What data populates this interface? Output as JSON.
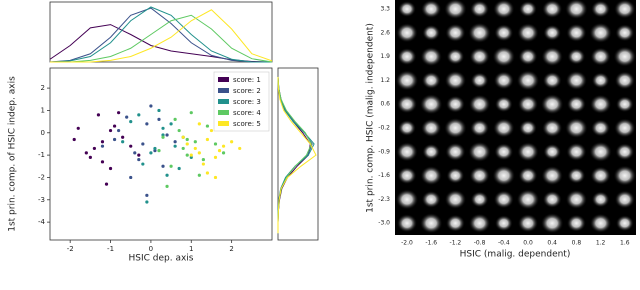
{
  "chart_data": [
    {
      "type": "scatter",
      "xlabel": "HSIC dep. axis",
      "ylabel": "1st prin. comp. of HSIC indep. axis",
      "xlim": [
        -2.5,
        3.0
      ],
      "ylim": [
        -4.8,
        2.9
      ],
      "xticks": [
        -2,
        -1,
        0,
        1,
        2
      ],
      "yticks": [
        -4,
        -3,
        -2,
        -1,
        0,
        1,
        2
      ],
      "legend": "upper right",
      "kde_lim": [
        0,
        1
      ],
      "kde_x_grid": [
        -2.5,
        -2,
        -1.5,
        -1,
        -0.5,
        0,
        0.5,
        1,
        1.5,
        2,
        2.5,
        3.0
      ],
      "kde_y_grid": [
        2.5,
        2,
        1.5,
        1,
        0.5,
        0,
        -0.5,
        -1,
        -1.5,
        -2,
        -2.5,
        -3,
        -3.5,
        -4,
        -4.5
      ],
      "series": [
        {
          "name": "score: 1",
          "color": "#440154",
          "x": [
            -1.8,
            -1.5,
            -1.3,
            -1.2,
            -1.0,
            -0.9,
            -1.4,
            -0.7,
            -1.1,
            -1.6,
            -0.8,
            -1.2,
            -0.5,
            -1.0,
            -1.9,
            -0.3
          ],
          "y": [
            0.2,
            -1.1,
            0.8,
            -0.4,
            -1.6,
            0.3,
            -0.7,
            -0.2,
            -2.3,
            -0.9,
            0.9,
            -1.3,
            -0.6,
            0.1,
            -0.3,
            -1.0
          ],
          "kde_x": [
            0.05,
            0.3,
            0.62,
            0.68,
            0.5,
            0.3,
            0.2,
            0.15,
            0.1,
            0.04,
            0.01,
            0
          ],
          "kde_y": [
            0,
            0.02,
            0.08,
            0.2,
            0.4,
            0.65,
            0.85,
            0.8,
            0.5,
            0.25,
            0.1,
            0.04,
            0.01,
            0,
            0
          ]
        },
        {
          "name": "score: 2",
          "color": "#3b528b",
          "x": [
            -0.9,
            -0.6,
            -0.3,
            -0.1,
            0.1,
            0.4,
            -0.5,
            0.0,
            -0.2,
            0.3,
            -0.8,
            0.2,
            -0.4,
            0.6,
            -0.1,
            -1.2
          ],
          "y": [
            -0.3,
            0.7,
            -1.2,
            0.4,
            -0.8,
            -0.1,
            -2.0,
            1.2,
            -0.5,
            -1.5,
            0.1,
            0.6,
            -0.9,
            -0.4,
            -2.8,
            -0.6
          ],
          "kde_x": [
            0,
            0.03,
            0.15,
            0.45,
            0.85,
            0.98,
            0.7,
            0.35,
            0.12,
            0.03,
            0,
            0
          ],
          "kde_y": [
            0,
            0.02,
            0.07,
            0.2,
            0.42,
            0.7,
            0.9,
            0.78,
            0.45,
            0.2,
            0.08,
            0.03,
            0.01,
            0,
            0
          ]
        },
        {
          "name": "score: 3",
          "color": "#21918c",
          "x": [
            -0.5,
            0.0,
            0.3,
            0.6,
            -0.2,
            0.2,
            0.8,
            -0.7,
            0.4,
            0.1,
            -0.3,
            0.5,
            1.0,
            -0.1,
            0.3,
            0.7
          ],
          "y": [
            0.5,
            -0.9,
            0.2,
            -0.6,
            -1.4,
            1.0,
            -0.2,
            -0.4,
            -1.9,
            -0.7,
            0.8,
            0.4,
            -1.1,
            -3.1,
            -0.1,
            -1.6
          ],
          "kde_x": [
            0,
            0.02,
            0.1,
            0.35,
            0.75,
            1.0,
            0.85,
            0.5,
            0.2,
            0.05,
            0,
            0
          ],
          "kde_y": [
            0,
            0.01,
            0.06,
            0.18,
            0.4,
            0.7,
            0.95,
            0.8,
            0.45,
            0.2,
            0.07,
            0.02,
            0,
            0,
            0
          ]
        },
        {
          "name": "score: 4",
          "color": "#5ec962",
          "x": [
            0.3,
            0.6,
            0.9,
            1.1,
            1.4,
            0.5,
            0.8,
            1.2,
            0.2,
            1.0,
            1.6,
            0.7,
            0.4,
            1.3,
            0.9,
            1.8
          ],
          "y": [
            -0.2,
            0.6,
            -1.0,
            -0.4,
            0.3,
            -1.5,
            -0.7,
            -1.9,
            -0.8,
            0.9,
            -0.5,
            0.1,
            -2.4,
            -1.2,
            -0.3,
            -0.9
          ],
          "kde_x": [
            0,
            0,
            0.03,
            0.1,
            0.25,
            0.5,
            0.75,
            0.85,
            0.6,
            0.25,
            0.06,
            0
          ],
          "kde_y": [
            0,
            0.02,
            0.08,
            0.22,
            0.45,
            0.72,
            0.88,
            0.75,
            0.45,
            0.22,
            0.09,
            0.03,
            0.01,
            0,
            0
          ]
        },
        {
          "name": "score: 5",
          "color": "#fde725",
          "x": [
            0.9,
            1.2,
            1.4,
            1.6,
            1.1,
            1.5,
            1.3,
            1.8,
            0.8,
            1.7,
            1.4,
            2.0,
            1.2,
            1.0,
            1.6,
            2.2
          ],
          "y": [
            -0.5,
            -0.9,
            -0.3,
            -1.1,
            -0.7,
            0.1,
            -1.4,
            -0.6,
            -0.2,
            -0.8,
            -1.8,
            -0.4,
            0.4,
            -1.0,
            -2.0,
            -0.7
          ],
          "kde_x": [
            0,
            0,
            0,
            0.03,
            0.1,
            0.25,
            0.45,
            0.75,
            0.95,
            0.6,
            0.15,
            0.02
          ],
          "kde_y": [
            0,
            0.01,
            0.05,
            0.15,
            0.35,
            0.6,
            0.85,
            1.0,
            0.6,
            0.25,
            0.08,
            0.03,
            0.01,
            0,
            0
          ]
        }
      ]
    },
    {
      "type": "image_grid",
      "xlabel": "HSIC (malig. dependent)",
      "ylabel": "1st prin. comp. HSIC (malig. independent)",
      "categories": [
        "-2.0",
        "-1.6",
        "-1.2",
        "-0.8",
        "-0.4",
        "0.0",
        "0.4",
        "0.8",
        "1.2",
        "1.6"
      ],
      "y_categories": [
        "3.3",
        "2.6",
        "1.9",
        "1.2",
        "0.6",
        "-0.2",
        "-0.9",
        "-1.6",
        "-2.3",
        "-3.0"
      ]
    }
  ]
}
